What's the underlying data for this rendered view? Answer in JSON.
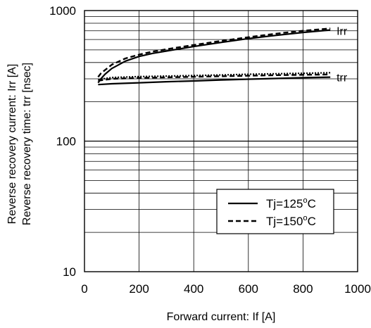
{
  "chart_data": {
    "type": "line",
    "xlabel": "Forward current: If [A]",
    "ylabel_lines": [
      "Reverse recovery current: Irr [A]",
      "Reverse recovery time: trr [nsec]"
    ],
    "x_scale": "linear",
    "y_scale": "log",
    "xlim": [
      0,
      1000
    ],
    "ylim": [
      10,
      1000
    ],
    "x_ticks": [
      0,
      200,
      400,
      600,
      800,
      1000
    ],
    "x_tick_labels": [
      "0",
      "200",
      "400",
      "600",
      "800",
      "1000"
    ],
    "y_ticks": [
      10,
      100,
      1000
    ],
    "y_tick_labels": [
      "10",
      "100",
      "1000"
    ],
    "grid": true,
    "legend": {
      "placement": "lower-right",
      "entries": [
        {
          "name": "Tj=125°C",
          "prefix": "Tj=125",
          "sup": "o",
          "suffix": "C",
          "style": "solid"
        },
        {
          "name": "Tj=150°C",
          "prefix": "Tj=150",
          "sup": "o",
          "suffix": "C",
          "style": "dashed"
        }
      ]
    },
    "series_labels": [
      {
        "text": "Irr",
        "anchor_x": 910,
        "anchor_y": 700
      },
      {
        "text": "trr",
        "anchor_x": 910,
        "anchor_y": 310
      }
    ],
    "series": [
      {
        "name": "Irr Tj=125°C",
        "style": "solid",
        "x": [
          50,
          60,
          75,
          100,
          150,
          200,
          250,
          300,
          400,
          500,
          600,
          700,
          800,
          900
        ],
        "values": [
          280,
          300,
          325,
          360,
          410,
          445,
          470,
          490,
          530,
          570,
          610,
          645,
          680,
          710
        ]
      },
      {
        "name": "Irr Tj=150°C",
        "style": "dashed",
        "x": [
          50,
          60,
          75,
          100,
          150,
          200,
          250,
          300,
          400,
          500,
          600,
          700,
          800,
          900
        ],
        "values": [
          310,
          330,
          350,
          385,
          430,
          460,
          485,
          505,
          545,
          585,
          625,
          665,
          700,
          730
        ]
      },
      {
        "name": "trr Tj=125°C",
        "style": "solid",
        "x": [
          50,
          100,
          200,
          300,
          400,
          500,
          600,
          700,
          800,
          900
        ],
        "values": [
          271,
          275,
          280,
          285,
          289,
          294,
          298,
          302,
          306,
          309
        ]
      },
      {
        "name": "trr Tj=150°C",
        "style": "dashed",
        "x": [
          50,
          100,
          200,
          300,
          400,
          500,
          600,
          700,
          800,
          900
        ],
        "values": [
          290,
          300,
          305,
          308,
          311,
          314,
          317,
          320,
          322,
          324
        ]
      },
      {
        "name": "trr Tj=150°C upper",
        "style": "dotted",
        "x": [
          50,
          100,
          200,
          300,
          400,
          500,
          600,
          700,
          800,
          900
        ],
        "values": [
          296,
          307,
          312,
          315,
          318,
          321,
          325,
          328,
          331,
          334
        ]
      }
    ]
  }
}
